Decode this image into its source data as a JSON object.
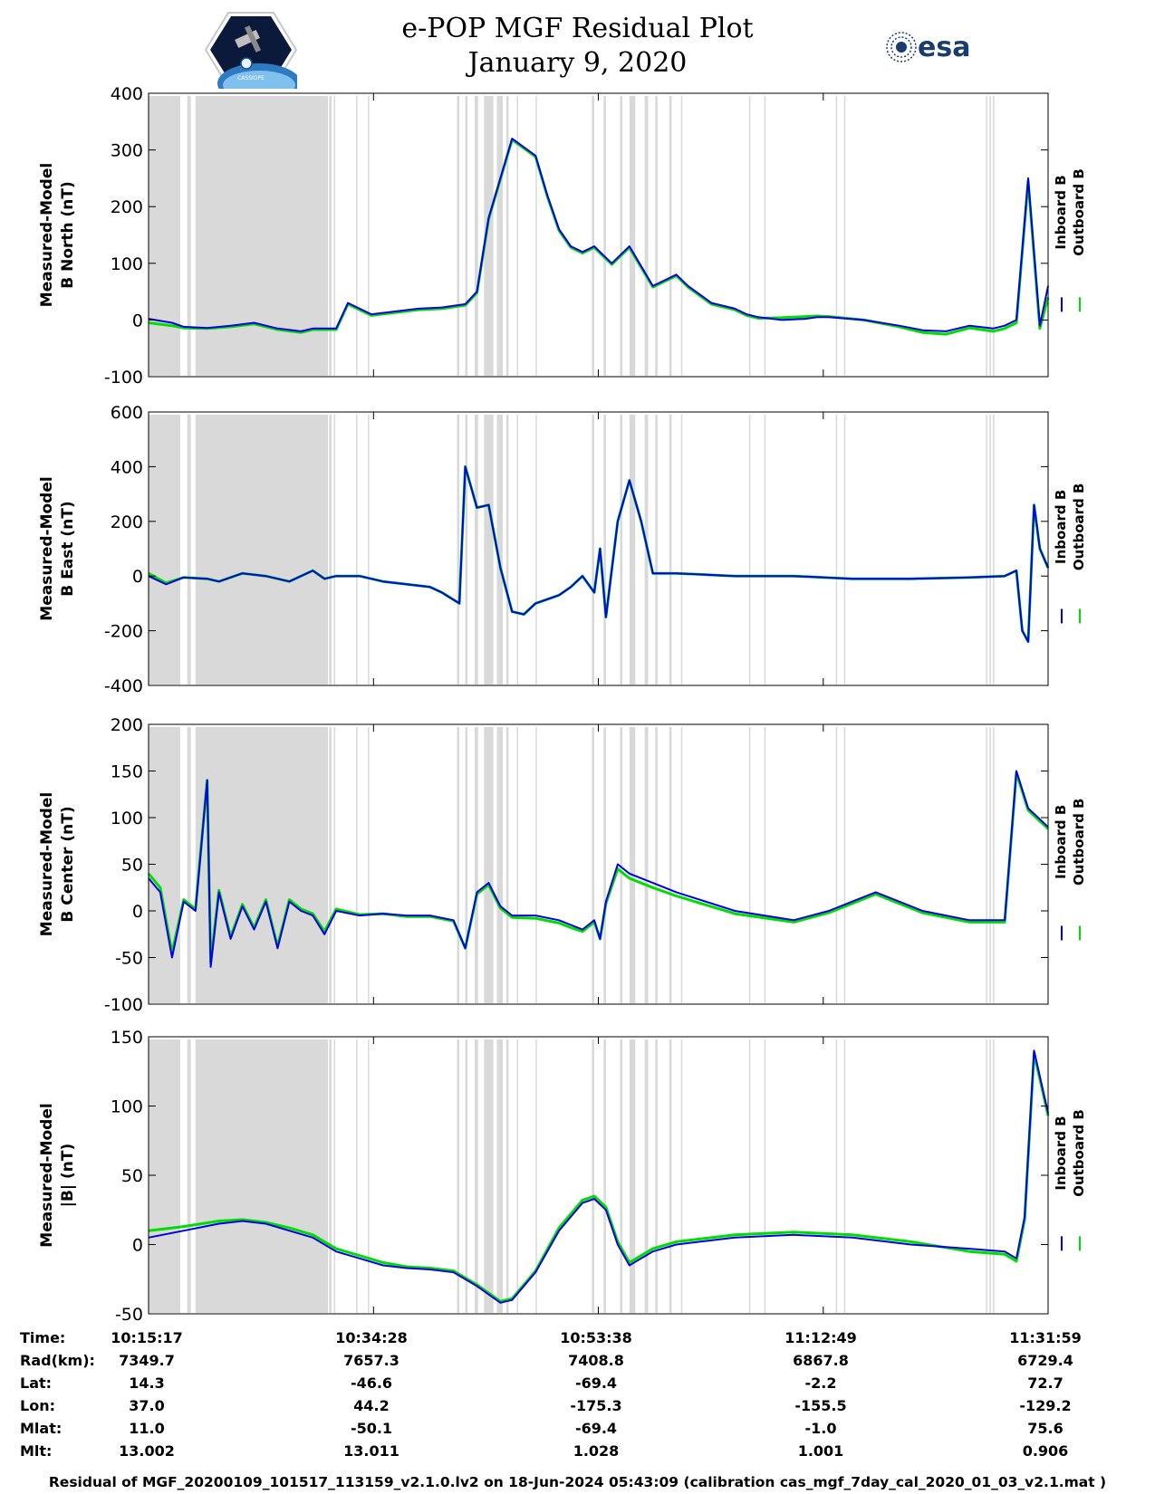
{
  "title": {
    "line1": "e-POP MGF Residual Plot",
    "line2": "January 9, 2020"
  },
  "logos": {
    "left": "CASSIOPE",
    "right": "esa"
  },
  "colors": {
    "inboard": "#0000e6",
    "outboard": "#00dd00",
    "gap_shading": "#d9d9d9"
  },
  "chart_data": [
    {
      "type": "line",
      "ylabel_line1": "Measured-Model",
      "ylabel_line2": "B North (nT)",
      "ylim": [
        -100,
        400
      ],
      "yticks": [
        -100,
        0,
        100,
        200,
        300,
        400
      ],
      "legend": [
        "Inboard B",
        "Outboard B"
      ],
      "legend_placement": "right",
      "x_minutes": [
        0,
        2,
        3,
        5,
        7,
        9,
        11,
        13,
        14,
        16,
        17,
        19,
        21,
        23,
        25,
        26,
        27,
        28,
        29,
        31,
        33,
        34,
        35,
        36,
        37,
        38,
        38.5,
        39.5,
        41,
        43,
        44,
        45,
        46,
        48,
        50,
        51,
        52,
        54,
        56,
        57,
        58,
        61,
        64,
        66,
        68,
        70,
        72,
        73,
        74,
        75,
        76,
        76.7
      ],
      "series": [
        {
          "name": "Inboard B",
          "values": [
            2,
            -5,
            -12,
            -14,
            -10,
            -5,
            -15,
            -20,
            -15,
            -15,
            30,
            10,
            15,
            20,
            22,
            25,
            28,
            50,
            180,
            320,
            290,
            220,
            160,
            130,
            120,
            130,
            120,
            100,
            130,
            60,
            70,
            80,
            60,
            30,
            20,
            10,
            5,
            0,
            2,
            5,
            5,
            0,
            -10,
            -18,
            -20,
            -10,
            -15,
            -10,
            0,
            250,
            -10,
            60
          ]
        },
        {
          "name": "Outboard B",
          "values": [
            -5,
            -10,
            -14,
            -15,
            -12,
            -7,
            -17,
            -22,
            -17,
            -17,
            28,
            8,
            13,
            18,
            20,
            23,
            26,
            48,
            178,
            318,
            288,
            218,
            158,
            128,
            118,
            128,
            118,
            98,
            128,
            58,
            68,
            78,
            58,
            28,
            18,
            8,
            3,
            4,
            6,
            7,
            6,
            0,
            -12,
            -22,
            -25,
            -14,
            -20,
            -15,
            -5,
            245,
            -15,
            40
          ]
        }
      ]
    },
    {
      "type": "line",
      "ylabel_line1": "Measured-Model",
      "ylabel_line2": "B East (nT)",
      "ylim": [
        -400,
        600
      ],
      "yticks": [
        -400,
        -200,
        0,
        200,
        400,
        600
      ],
      "legend": [
        "Inboard B",
        "Outboard B"
      ],
      "legend_placement": "right",
      "x_minutes": [
        0,
        1.5,
        3,
        5,
        6,
        8,
        10,
        12,
        14,
        15,
        16,
        18,
        20,
        22,
        24,
        25,
        26.5,
        27,
        28,
        29,
        30,
        31,
        32,
        33,
        35,
        36,
        37,
        38,
        38.5,
        39,
        40,
        41,
        42,
        43,
        45,
        50,
        55,
        60,
        65,
        70,
        73,
        74,
        74.5,
        75,
        75.5,
        76,
        76.7
      ],
      "series": [
        {
          "name": "Inboard B",
          "values": [
            0,
            -30,
            -5,
            -10,
            -20,
            10,
            0,
            -20,
            20,
            -10,
            0,
            0,
            -20,
            -30,
            -40,
            -60,
            -100,
            400,
            250,
            260,
            30,
            -130,
            -140,
            -100,
            -70,
            -40,
            0,
            -60,
            100,
            -150,
            200,
            350,
            200,
            10,
            10,
            0,
            0,
            -10,
            -10,
            -5,
            0,
            20,
            -200,
            -240,
            260,
            100,
            30
          ]
        },
        {
          "name": "Outboard B",
          "values": [
            10,
            -25,
            -5,
            -10,
            -20,
            10,
            0,
            -20,
            20,
            -10,
            0,
            0,
            -20,
            -30,
            -40,
            -60,
            -100,
            400,
            250,
            260,
            30,
            -130,
            -140,
            -100,
            -70,
            -40,
            0,
            -60,
            100,
            -150,
            200,
            350,
            200,
            10,
            10,
            0,
            0,
            -10,
            -10,
            -5,
            0,
            20,
            -200,
            -240,
            260,
            100,
            30
          ]
        }
      ]
    },
    {
      "type": "line",
      "ylabel_line1": "Measured-Model",
      "ylabel_line2": "B Center (nT)",
      "ylim": [
        -100,
        200
      ],
      "yticks": [
        -100,
        -50,
        0,
        50,
        100,
        150,
        200
      ],
      "legend": [
        "Inboard B",
        "Outboard B"
      ],
      "legend_placement": "right",
      "x_minutes": [
        0,
        1,
        2,
        3,
        4,
        5,
        5.3,
        6,
        7,
        8,
        9,
        10,
        11,
        12,
        13,
        14,
        15,
        16,
        18,
        20,
        22,
        24,
        26,
        27,
        28,
        29,
        30,
        31,
        33,
        35,
        36,
        37,
        38,
        38.5,
        39,
        40,
        41,
        43,
        45,
        50,
        55,
        58,
        60,
        62,
        64,
        66,
        70,
        73,
        74,
        75,
        76.7
      ],
      "series": [
        {
          "name": "Inboard B",
          "values": [
            35,
            20,
            -50,
            10,
            0,
            140,
            -60,
            20,
            -30,
            5,
            -20,
            10,
            -40,
            10,
            0,
            -5,
            -25,
            0,
            -5,
            -3,
            -5,
            -5,
            -10,
            -40,
            20,
            30,
            5,
            -5,
            -5,
            -10,
            -15,
            -20,
            -10,
            -30,
            10,
            50,
            40,
            30,
            20,
            0,
            -10,
            0,
            10,
            20,
            10,
            0,
            -10,
            -10,
            150,
            110,
            90
          ]
        },
        {
          "name": "Outboard B",
          "values": [
            40,
            25,
            -45,
            12,
            2,
            140,
            -55,
            22,
            -28,
            7,
            -18,
            12,
            -38,
            12,
            2,
            -3,
            -22,
            2,
            -4,
            -3,
            -6,
            -6,
            -11,
            -40,
            18,
            28,
            3,
            -7,
            -8,
            -13,
            -18,
            -22,
            -12,
            -30,
            8,
            45,
            35,
            25,
            16,
            -3,
            -12,
            -2,
            8,
            18,
            8,
            -2,
            -12,
            -12,
            148,
            108,
            88
          ]
        }
      ]
    },
    {
      "type": "line",
      "ylabel_line1": "Measured-Model",
      "ylabel_line2": "|B| (nT)",
      "ylim": [
        -50,
        150
      ],
      "yticks": [
        -50,
        0,
        50,
        100,
        150
      ],
      "legend": [
        "Inboard B",
        "Outboard B"
      ],
      "legend_placement": "right",
      "x_minutes": [
        0,
        3,
        6,
        8,
        10,
        12,
        14,
        16,
        18,
        20,
        22,
        24,
        26,
        28,
        30,
        31,
        33,
        35,
        37,
        38,
        39,
        40,
        41,
        42,
        43,
        45,
        50,
        55,
        60,
        65,
        70,
        73,
        74,
        74.7,
        75.5,
        76.7
      ],
      "series": [
        {
          "name": "Inboard B",
          "values": [
            5,
            10,
            15,
            17,
            15,
            10,
            5,
            -5,
            -10,
            -15,
            -17,
            -18,
            -20,
            -30,
            -42,
            -40,
            -20,
            10,
            30,
            33,
            25,
            0,
            -15,
            -10,
            -5,
            0,
            5,
            7,
            5,
            0,
            -3,
            -5,
            -10,
            20,
            140,
            95
          ]
        },
        {
          "name": "Outboard B",
          "values": [
            10,
            13,
            17,
            18,
            16,
            12,
            7,
            -3,
            -8,
            -13,
            -16,
            -17,
            -19,
            -29,
            -41,
            -39,
            -19,
            12,
            32,
            35,
            27,
            2,
            -13,
            -8,
            -3,
            2,
            7,
            9,
            7,
            2,
            -5,
            -7,
            -12,
            18,
            138,
            93
          ]
        }
      ]
    }
  ],
  "gap_intervals_minutes": [
    [
      0,
      2.7
    ],
    [
      3.3,
      3.6
    ],
    [
      4.0,
      15.3
    ],
    [
      15.4,
      15.6
    ],
    [
      15.8,
      15.9
    ],
    [
      17.7,
      17.8
    ],
    [
      18.7,
      18.8
    ],
    [
      26.3,
      26.5
    ],
    [
      27.0,
      27.2
    ],
    [
      27.8,
      28.1
    ],
    [
      28.6,
      29.4
    ],
    [
      29.7,
      30.2
    ],
    [
      30.5,
      30.7
    ],
    [
      31.4,
      31.5
    ],
    [
      33.0,
      33.1
    ],
    [
      37.8,
      38.0
    ],
    [
      38.8,
      39.0
    ],
    [
      40.2,
      40.4
    ],
    [
      41.0,
      41.5
    ],
    [
      42.3,
      42.6
    ],
    [
      43.2,
      43.4
    ],
    [
      44.4,
      44.6
    ],
    [
      45.4,
      45.5
    ],
    [
      51.2,
      51.3
    ],
    [
      52.5,
      52.6
    ],
    [
      58.6,
      58.7
    ],
    [
      59.3,
      59.4
    ],
    [
      71.4,
      71.5
    ],
    [
      71.7,
      71.8
    ],
    [
      72.0,
      72.1
    ]
  ],
  "x_axis": {
    "xlim_minutes": [
      0,
      76.7
    ],
    "tick_minutes": [
      0,
      19.18,
      38.35,
      57.53,
      76.7
    ]
  },
  "annotation_table": {
    "labels": [
      "Time:",
      "Rad(km):",
      "Lat:",
      "Lon:",
      "Mlat:",
      "Mlt:"
    ],
    "columns": [
      [
        "10:15:17",
        "7349.7",
        "14.3",
        "37.0",
        "11.0",
        "13.002"
      ],
      [
        "10:34:28",
        "7657.3",
        "-46.6",
        "44.2",
        "-50.1",
        "13.011"
      ],
      [
        "10:53:38",
        "7408.8",
        "-69.4",
        "-175.3",
        "-69.4",
        "1.028"
      ],
      [
        "11:12:49",
        "6867.8",
        "-2.2",
        "-155.5",
        "-1.0",
        "1.001"
      ],
      [
        "11:31:59",
        "6729.4",
        "72.7",
        "-129.2",
        "75.6",
        "0.906"
      ]
    ]
  },
  "footer": "Residual of MGF_20200109_101517_113159_v2.1.0.lv2 on 18-Jun-2024 05:43:09 (calibration cas_mgf_7day_cal_2020_01_03_v2.1.mat )"
}
